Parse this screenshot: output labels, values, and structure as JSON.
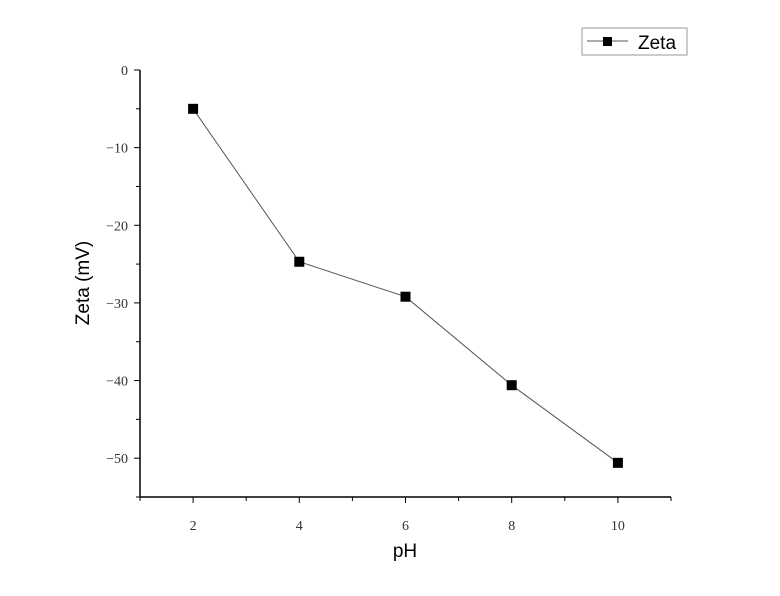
{
  "chart_data": {
    "type": "line",
    "title": "",
    "xlabel": "pH",
    "ylabel": "Zeta (mV)",
    "xlim": [
      1,
      11
    ],
    "ylim": [
      -55,
      0
    ],
    "x_ticks": [
      2,
      4,
      6,
      8,
      10
    ],
    "y_ticks": [
      0,
      -10,
      -20,
      -30,
      -40,
      -50
    ],
    "grid": false,
    "legend_position": "top-right",
    "series": [
      {
        "name": "Zeta",
        "x": [
          2,
          4,
          6,
          8,
          10
        ],
        "y": [
          -5.0,
          -24.7,
          -29.2,
          -40.6,
          -50.6
        ],
        "color": "#000000",
        "marker": "square"
      }
    ]
  }
}
